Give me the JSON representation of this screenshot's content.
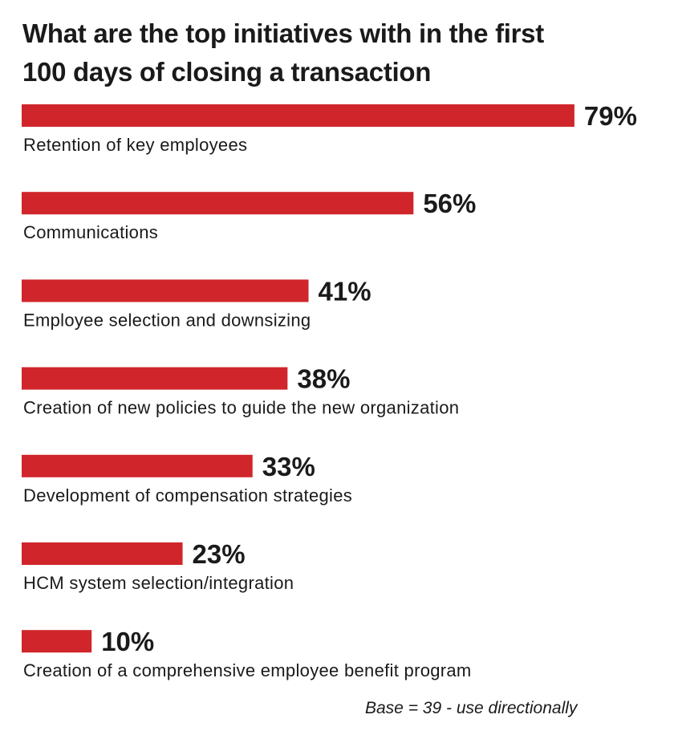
{
  "chart_data": {
    "type": "bar",
    "orientation": "horizontal",
    "title": "What are the top initiatives with in the first 100 days of closing a transaction",
    "categories": [
      "Retention of key employees",
      "Communications",
      "Employee selection and downsizing",
      "Creation of new policies to guide the new organization",
      "Development of compensation strategies",
      "HCM system selection/integration",
      "Creation of a comprehensive employee benefit program"
    ],
    "values": [
      79,
      56,
      41,
      38,
      33,
      23,
      10
    ],
    "value_labels": [
      "79%",
      "56%",
      "41%",
      "38%",
      "33%",
      "23%",
      "10%"
    ],
    "color": "#d0262b",
    "note": "Base = 39 - use directionally"
  }
}
